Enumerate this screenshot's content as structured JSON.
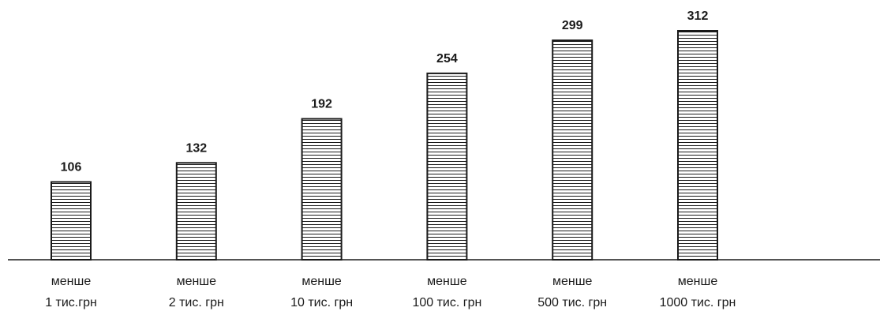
{
  "chart_data": {
    "type": "bar",
    "categories": [
      [
        "менше",
        "1 тис.грн"
      ],
      [
        "менше",
        "2 тис. грн"
      ],
      [
        "менше",
        "10 тис. грн"
      ],
      [
        "менше",
        "100 тис. грн"
      ],
      [
        "менше",
        "500 тис. грн"
      ],
      [
        "менше",
        "1000 тис. грн"
      ]
    ],
    "values": [
      106,
      132,
      192,
      254,
      299,
      312
    ],
    "data_labels": [
      "106",
      "132",
      "192",
      "254",
      "299",
      "312"
    ],
    "bar_pattern": "horizontal-stripes",
    "colors": {
      "stroke": "#1a1a1a",
      "fill": "#ffffff",
      "text": "#1a1a1a"
    },
    "title": "",
    "xlabel": "",
    "ylabel": "",
    "ylim": [
      0,
      312
    ],
    "grid": false,
    "legend": "none"
  }
}
